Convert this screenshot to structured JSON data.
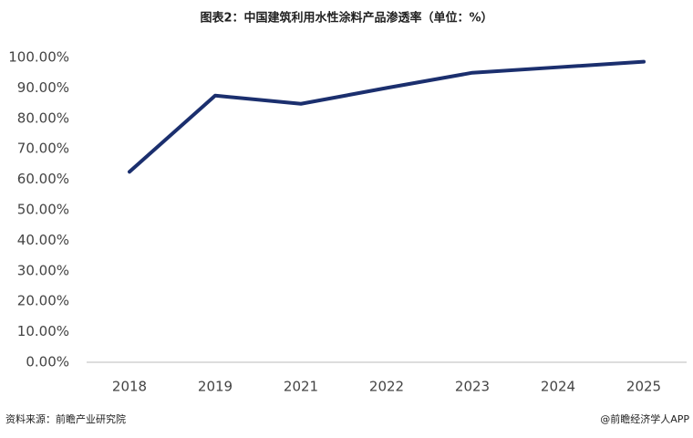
{
  "chart_data": {
    "type": "line",
    "title": "图表2：中国建筑利用水性涂料产品渗透率（单位：%）",
    "categories": [
      "2018",
      "2019",
      "2021",
      "2022",
      "2023",
      "2024",
      "2025"
    ],
    "series": [
      {
        "name": "渗透率",
        "color": "#1b2f6e",
        "values": [
          62.5,
          87.5,
          84.8,
          90,
          95,
          96.8,
          98.6
        ]
      }
    ],
    "ylim": [
      0,
      100
    ],
    "yticks": [
      {
        "value": 0,
        "label": "0.00%"
      },
      {
        "value": 10,
        "label": "10.00%"
      },
      {
        "value": 20,
        "label": "20.00%"
      },
      {
        "value": 30,
        "label": "30.00%"
      },
      {
        "value": 40,
        "label": "40.00%"
      },
      {
        "value": 50,
        "label": "50.00%"
      },
      {
        "value": 60,
        "label": "60.00%"
      },
      {
        "value": 70,
        "label": "70.00%"
      },
      {
        "value": 80,
        "label": "80.00%"
      },
      {
        "value": 90,
        "label": "90.00%"
      },
      {
        "value": 100,
        "label": "100.00%"
      }
    ],
    "grid": false,
    "source": "资料来源：前瞻产业研究院",
    "credit": "@前瞻经济学人APP"
  }
}
